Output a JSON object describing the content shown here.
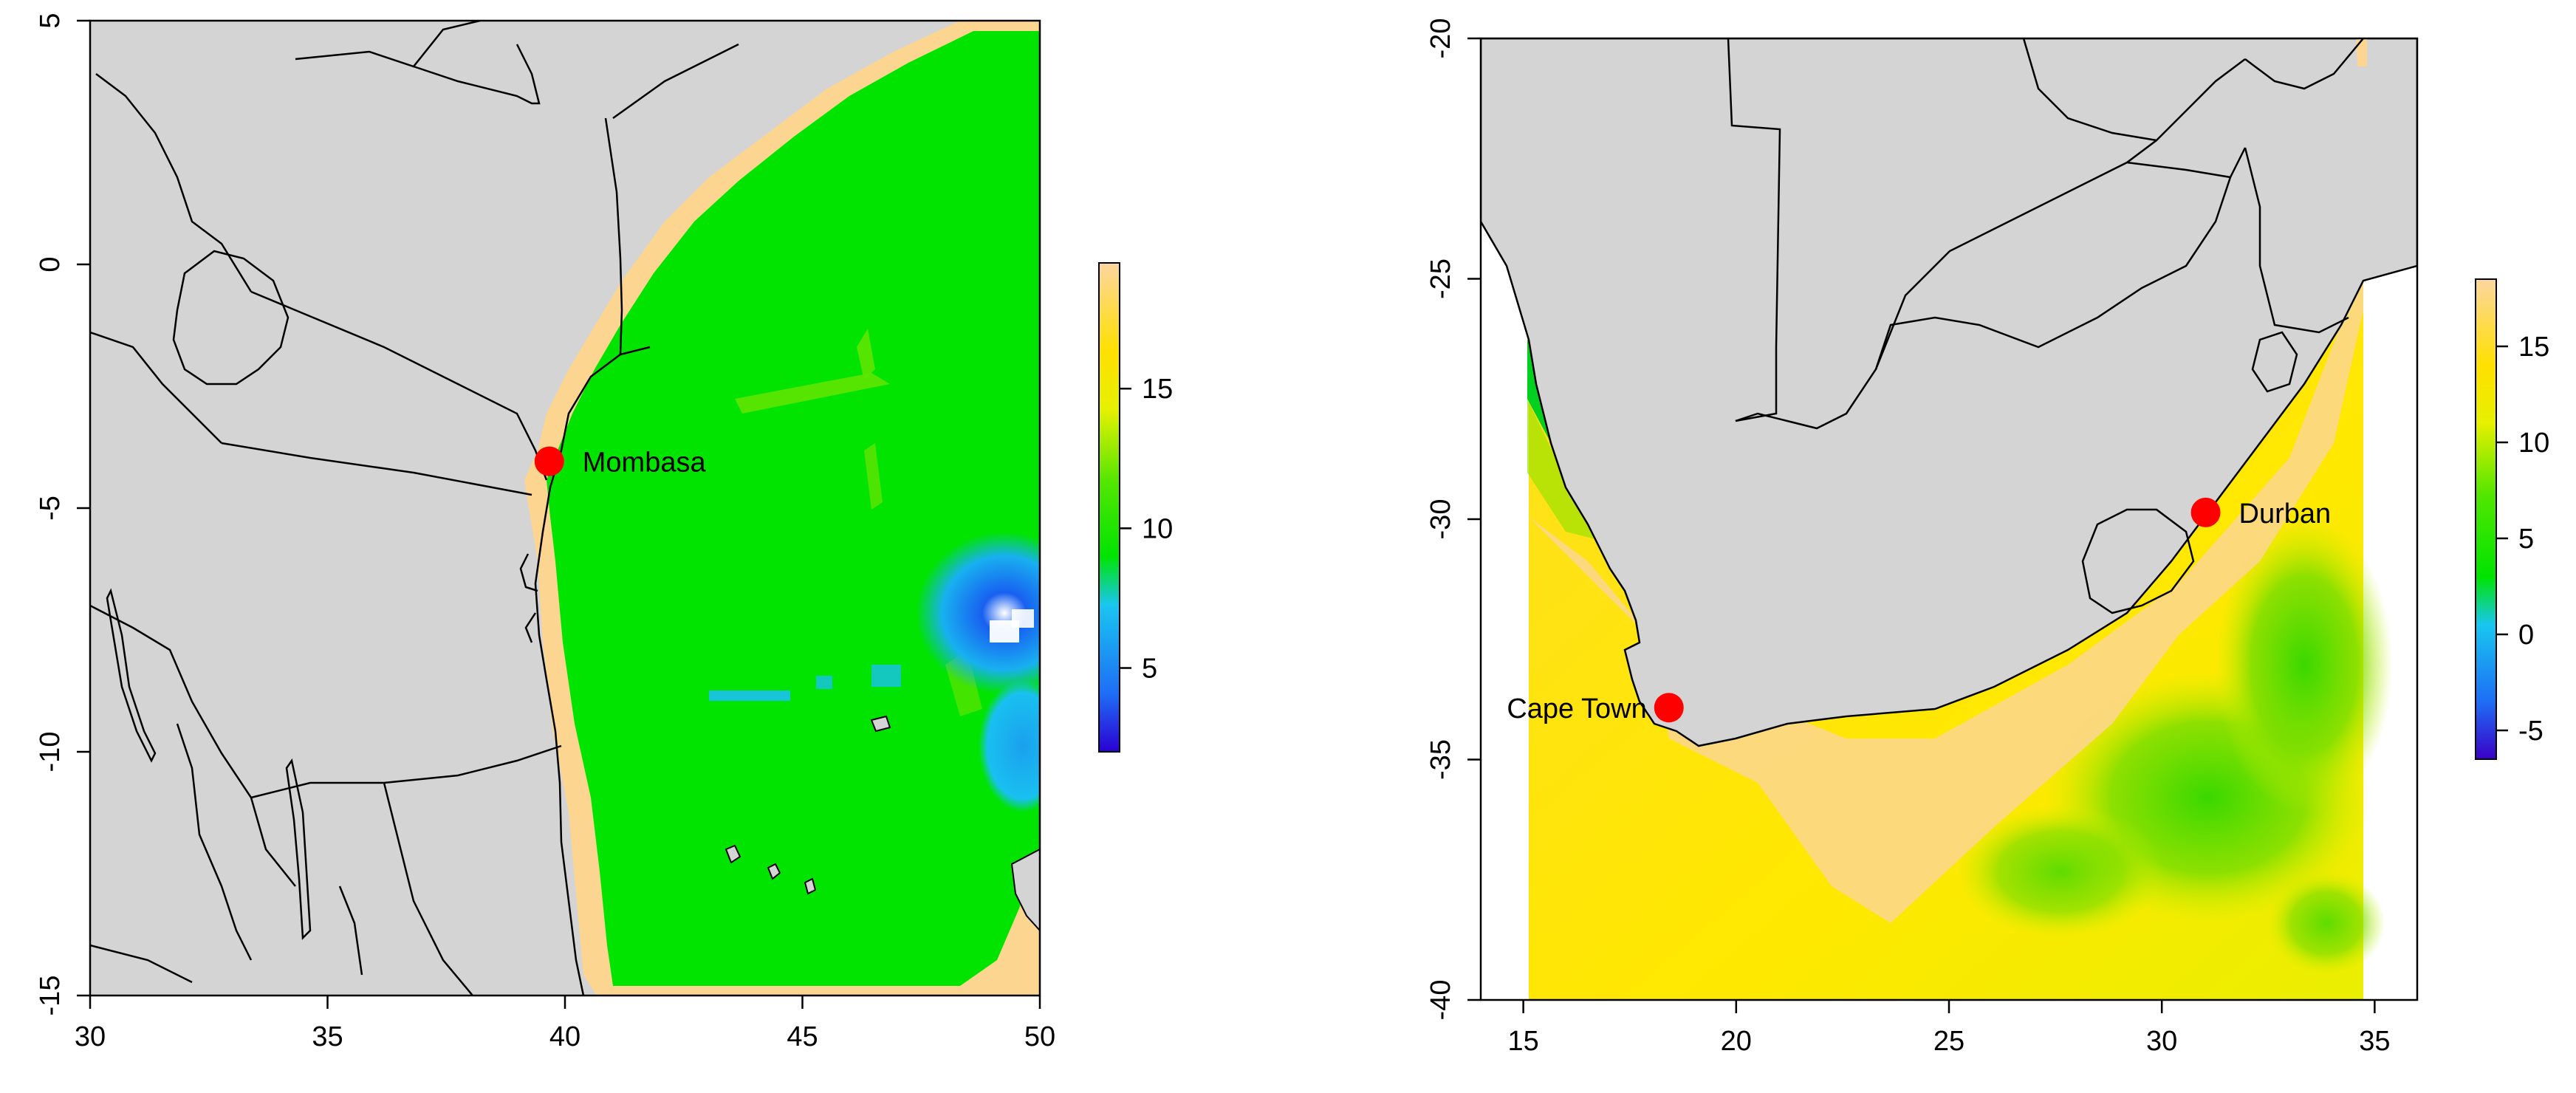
{
  "chart_data": [
    {
      "type": "heatmap",
      "title": "",
      "xlabel": "",
      "ylabel": "",
      "xlim": [
        30,
        50
      ],
      "ylim": [
        -15,
        5
      ],
      "xticks": [
        "30",
        "35",
        "40",
        "45",
        "50"
      ],
      "yticks": [
        "-15",
        "-10",
        "-5",
        "0",
        "5"
      ],
      "grid": false,
      "colorbar": {
        "range": [
          2,
          19.5
        ],
        "ticks": [
          "5",
          "10",
          "15"
        ],
        "stops": [
          "#2b00d4",
          "#1e6ef5",
          "#19c6f0",
          "#00e400",
          "#52e600",
          "#e6f000",
          "#ffe000",
          "#fbd6a0"
        ]
      },
      "locations": [
        {
          "name": "Mombasa",
          "lon": 39.67,
          "lat": -4.04
        }
      ]
    },
    {
      "type": "heatmap",
      "title": "",
      "xlabel": "",
      "ylabel": "",
      "xlim": [
        14,
        36
      ],
      "ylim": [
        -40,
        -20
      ],
      "xticks": [
        "15",
        "20",
        "25",
        "30",
        "35"
      ],
      "yticks": [
        "-40",
        "-35",
        "-30",
        "-25",
        "-20"
      ],
      "grid": false,
      "colorbar": {
        "range": [
          -6.5,
          18.5
        ],
        "ticks": [
          "-5",
          "0",
          "5",
          "10",
          "15"
        ],
        "stops": [
          "#3a00c8",
          "#1e6ef5",
          "#19c6f0",
          "#00e400",
          "#52e600",
          "#e6f000",
          "#ffe000",
          "#fbd6a0"
        ]
      },
      "locations": [
        {
          "name": "Durban",
          "lon": 31.03,
          "lat": -29.86
        },
        {
          "name": "Cape Town",
          "lon": 18.42,
          "lat": -33.92
        }
      ]
    }
  ],
  "colors": {
    "land": "#d4d4d4",
    "marker": "#ff0000"
  }
}
